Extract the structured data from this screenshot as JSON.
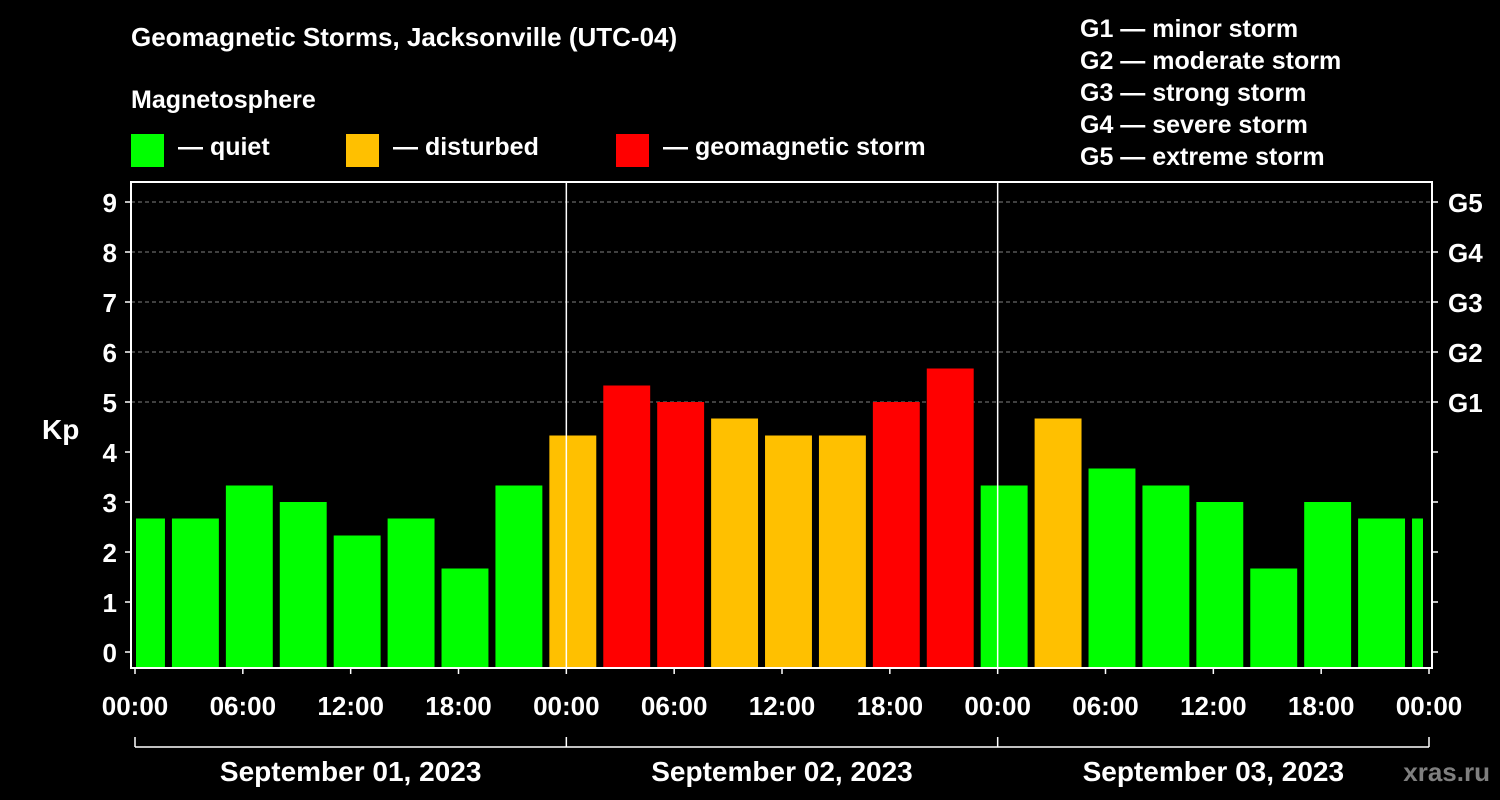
{
  "title": "Geomagnetic Storms, Jacksonville (UTC-04)",
  "magnetosphere": {
    "title": "Magnetosphere",
    "items": [
      {
        "label": "— quiet",
        "color": "#00ff00"
      },
      {
        "label": "— disturbed",
        "color": "#ffc000"
      },
      {
        "label": "— geomagnetic storm",
        "color": "#ff0000"
      }
    ]
  },
  "g_scale_legend": [
    "G1 — minor storm",
    "G2 — moderate storm",
    "G3 — strong storm",
    "G4 — severe storm",
    "G5 — extreme storm"
  ],
  "credit": "xras.ru",
  "chart_data": {
    "type": "bar",
    "ylabel": "Kp",
    "ylim": [
      0,
      9
    ],
    "y_ticks": [
      "0",
      "1",
      "2",
      "3",
      "4",
      "5",
      "6",
      "7",
      "8",
      "9"
    ],
    "right_ticks": [
      {
        "value": 5,
        "label": "G1"
      },
      {
        "value": 6,
        "label": "G2"
      },
      {
        "value": 7,
        "label": "G3"
      },
      {
        "value": 8,
        "label": "G4"
      },
      {
        "value": 9,
        "label": "G5"
      }
    ],
    "x_tick_labels": [
      "00:00",
      "06:00",
      "12:00",
      "18:00",
      "00:00",
      "06:00",
      "12:00",
      "18:00",
      "00:00",
      "06:00",
      "12:00",
      "18:00",
      "00:00"
    ],
    "x_range_hours": [
      0,
      72
    ],
    "day_labels": [
      "September 01, 2023",
      "September 02, 2023",
      "September 03, 2023"
    ],
    "grid": "dashed horizontal at 5, 6, 7, 8, 9",
    "bars": [
      {
        "start_hour": 0,
        "end_hour": 2,
        "kp": 2.67,
        "level": "quiet"
      },
      {
        "start_hour": 2,
        "end_hour": 5,
        "kp": 2.67,
        "level": "quiet"
      },
      {
        "start_hour": 5,
        "end_hour": 8,
        "kp": 3.33,
        "level": "quiet"
      },
      {
        "start_hour": 8,
        "end_hour": 11,
        "kp": 3.0,
        "level": "quiet"
      },
      {
        "start_hour": 11,
        "end_hour": 14,
        "kp": 2.33,
        "level": "quiet"
      },
      {
        "start_hour": 14,
        "end_hour": 17,
        "kp": 2.67,
        "level": "quiet"
      },
      {
        "start_hour": 17,
        "end_hour": 20,
        "kp": 1.67,
        "level": "quiet"
      },
      {
        "start_hour": 20,
        "end_hour": 23,
        "kp": 3.33,
        "level": "quiet"
      },
      {
        "start_hour": 23,
        "end_hour": 26,
        "kp": 4.33,
        "level": "disturbed"
      },
      {
        "start_hour": 26,
        "end_hour": 29,
        "kp": 5.33,
        "level": "storm"
      },
      {
        "start_hour": 29,
        "end_hour": 32,
        "kp": 5.0,
        "level": "storm"
      },
      {
        "start_hour": 32,
        "end_hour": 35,
        "kp": 4.67,
        "level": "disturbed"
      },
      {
        "start_hour": 35,
        "end_hour": 38,
        "kp": 4.33,
        "level": "disturbed"
      },
      {
        "start_hour": 38,
        "end_hour": 41,
        "kp": 4.33,
        "level": "disturbed"
      },
      {
        "start_hour": 41,
        "end_hour": 44,
        "kp": 5.0,
        "level": "storm"
      },
      {
        "start_hour": 44,
        "end_hour": 47,
        "kp": 5.67,
        "level": "storm"
      },
      {
        "start_hour": 47,
        "end_hour": 50,
        "kp": 3.33,
        "level": "quiet"
      },
      {
        "start_hour": 50,
        "end_hour": 53,
        "kp": 4.67,
        "level": "disturbed"
      },
      {
        "start_hour": 53,
        "end_hour": 56,
        "kp": 3.67,
        "level": "quiet"
      },
      {
        "start_hour": 56,
        "end_hour": 59,
        "kp": 3.33,
        "level": "quiet"
      },
      {
        "start_hour": 59,
        "end_hour": 62,
        "kp": 3.0,
        "level": "quiet"
      },
      {
        "start_hour": 62,
        "end_hour": 65,
        "kp": 1.67,
        "level": "quiet"
      },
      {
        "start_hour": 65,
        "end_hour": 68,
        "kp": 3.0,
        "level": "quiet"
      },
      {
        "start_hour": 68,
        "end_hour": 71,
        "kp": 2.67,
        "level": "quiet"
      },
      {
        "start_hour": 71,
        "end_hour": 72,
        "kp": 2.67,
        "level": "quiet"
      }
    ],
    "level_colors": {
      "quiet": "#00ff00",
      "disturbed": "#ffc000",
      "storm": "#ff0000"
    }
  }
}
